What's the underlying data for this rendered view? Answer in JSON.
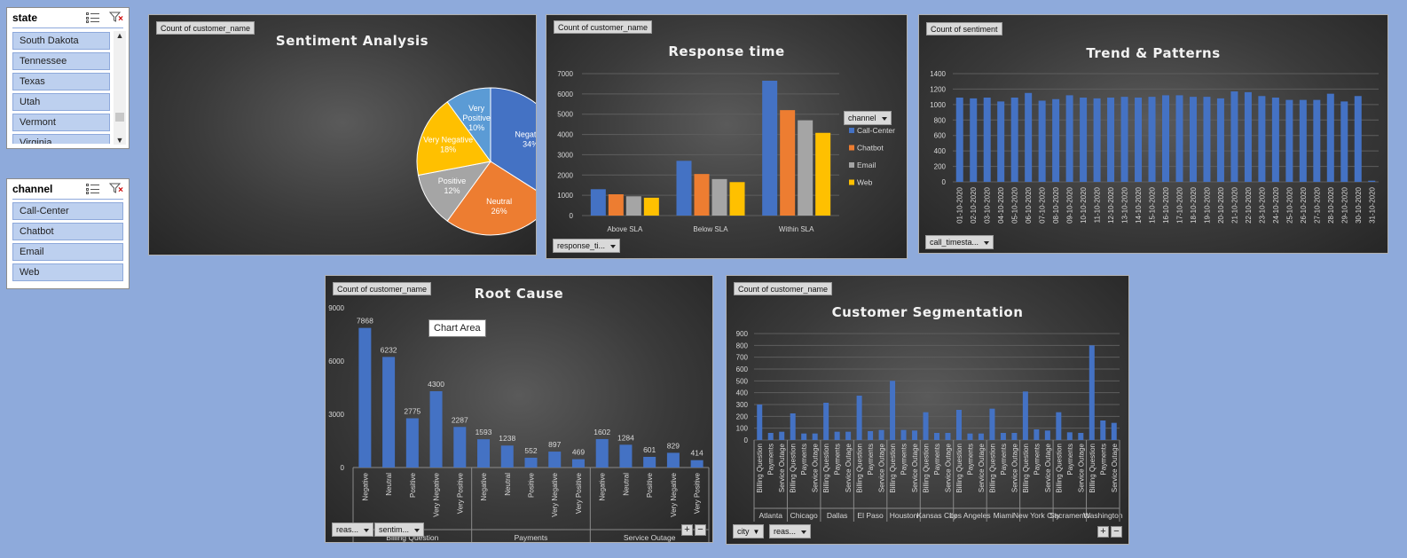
{
  "slicers": {
    "state": {
      "title": "state",
      "items": [
        "South Dakota",
        "Tennessee",
        "Texas",
        "Utah",
        "Vermont",
        "Virginia"
      ]
    },
    "channel": {
      "title": "channel",
      "items": [
        "Call-Center",
        "Chatbot",
        "Email",
        "Web"
      ]
    }
  },
  "panels": {
    "sentiment": {
      "field_button": "Count of customer_name",
      "title": "Sentiment Analysis"
    },
    "response": {
      "field_button": "Count of customer_name",
      "title": "Response time",
      "axis_button": "response_ti...",
      "legend_button": "channel"
    },
    "trend": {
      "field_button": "Count of sentiment",
      "title": "Trend & Patterns",
      "axis_button": "call_timesta..."
    },
    "root": {
      "field_button": "Count of customer_name",
      "title": "Root Cause",
      "axis_button_1": "reas...",
      "axis_button_2": "sentim...",
      "tooltip": "Chart Area",
      "plus": "+",
      "minus": "−"
    },
    "segment": {
      "field_button": "Count of customer_name",
      "title": "Customer Segmentation",
      "axis_button_1": "city",
      "axis_button_2": "reas...",
      "plus": "+",
      "minus": "−"
    }
  },
  "colors": {
    "blue": "#4472c4",
    "orange": "#ed7d31",
    "gray": "#a5a5a5",
    "gold": "#ffc000",
    "lightblue": "#5b9bd5"
  },
  "chart_data": [
    {
      "id": "sentiment",
      "type": "pie",
      "title": "Sentiment Analysis",
      "slices": [
        {
          "label": "Negative",
          "pct_label": "34%",
          "value": 34,
          "color": "#4472c4"
        },
        {
          "label": "Neutral",
          "pct_label": "26%",
          "value": 26,
          "color": "#ed7d31"
        },
        {
          "label": "Positive",
          "pct_label": "12%",
          "value": 12,
          "color": "#a5a5a5"
        },
        {
          "label": "Very Negative",
          "pct_label": "18%",
          "value": 18,
          "color": "#ffc000"
        },
        {
          "label": "Very Positive",
          "pct_label": "10%",
          "value": 10,
          "color": "#5b9bd5"
        }
      ]
    },
    {
      "id": "response",
      "type": "bar",
      "title": "Response time",
      "categories": [
        "Above SLA",
        "Below SLA",
        "Within SLA"
      ],
      "series": [
        {
          "name": "Call-Center",
          "color": "#4472c4",
          "values": [
            1300,
            2700,
            6650
          ]
        },
        {
          "name": "Chatbot",
          "color": "#ed7d31",
          "values": [
            1050,
            2050,
            5200
          ]
        },
        {
          "name": "Email",
          "color": "#a5a5a5",
          "values": [
            950,
            1800,
            4700
          ]
        },
        {
          "name": "Web",
          "color": "#ffc000",
          "values": [
            880,
            1650,
            4080
          ]
        }
      ],
      "yticks": [
        "0",
        "1000",
        "2000",
        "3000",
        "4000",
        "5000",
        "6000",
        "7000"
      ],
      "ylim": [
        0,
        7000
      ],
      "legend": "right"
    },
    {
      "id": "trend",
      "type": "bar",
      "title": "Trend & Patterns",
      "categories": [
        "01-10-2020",
        "02-10-2020",
        "03-10-2020",
        "04-10-2020",
        "05-10-2020",
        "06-10-2020",
        "07-10-2020",
        "08-10-2020",
        "09-10-2020",
        "10-10-2020",
        "11-10-2020",
        "12-10-2020",
        "13-10-2020",
        "14-10-2020",
        "15-10-2020",
        "16-10-2020",
        "17-10-2020",
        "18-10-2020",
        "19-10-2020",
        "20-10-2020",
        "21-10-2020",
        "22-10-2020",
        "23-10-2020",
        "24-10-2020",
        "25-10-2020",
        "26-10-2020",
        "27-10-2020",
        "28-10-2020",
        "29-10-2020",
        "30-10-2020",
        "31-10-2020"
      ],
      "values": [
        1090,
        1080,
        1090,
        1040,
        1090,
        1150,
        1050,
        1070,
        1120,
        1090,
        1080,
        1090,
        1100,
        1090,
        1100,
        1120,
        1120,
        1100,
        1100,
        1080,
        1170,
        1160,
        1110,
        1090,
        1060,
        1060,
        1060,
        1140,
        1040,
        1110,
        15
      ],
      "yticks": [
        "0",
        "200",
        "400",
        "600",
        "800",
        "1000",
        "1200",
        "1400"
      ],
      "ylim": [
        0,
        1400
      ]
    },
    {
      "id": "root",
      "type": "bar",
      "title": "Root Cause",
      "groups": [
        "Billing Question",
        "Payments",
        "Service Outage"
      ],
      "subcategories": [
        "Negative",
        "Neutral",
        "Positive",
        "Very Negative",
        "Very Positive"
      ],
      "values": [
        [
          7868,
          6232,
          2775,
          4300,
          2287
        ],
        [
          1593,
          1238,
          552,
          897,
          469
        ],
        [
          1602,
          1284,
          601,
          829,
          414
        ]
      ],
      "labels": [
        [
          "7868",
          "6232",
          "2775",
          "4300",
          "2287"
        ],
        [
          "1593",
          "1238",
          "552",
          "897",
          "469"
        ],
        [
          "1602",
          "1284",
          "601",
          "829",
          "414"
        ]
      ],
      "yticks": [
        "0",
        "3000",
        "6000",
        "9000"
      ],
      "ylim": [
        0,
        9000
      ]
    },
    {
      "id": "segment",
      "type": "bar",
      "title": "Customer Segmentation",
      "groups": [
        "Atlanta",
        "Chicago",
        "Dallas",
        "El Paso",
        "Houston",
        "Kansas City",
        "Los Angeles",
        "Miami",
        "New York City",
        "Sacramento",
        "Washington"
      ],
      "subcategories": [
        "Billing Question",
        "Payments",
        "Service Outage"
      ],
      "values": [
        [
          300,
          60,
          70
        ],
        [
          225,
          55,
          55
        ],
        [
          315,
          70,
          70
        ],
        [
          375,
          75,
          85
        ],
        [
          500,
          85,
          80
        ],
        [
          235,
          60,
          60
        ],
        [
          255,
          55,
          55
        ],
        [
          265,
          60,
          60
        ],
        [
          410,
          90,
          80
        ],
        [
          235,
          65,
          60
        ],
        [
          800,
          165,
          145
        ]
      ],
      "yticks": [
        "0",
        "100",
        "200",
        "300",
        "400",
        "500",
        "600",
        "700",
        "800",
        "900"
      ],
      "ylim": [
        0,
        900
      ]
    }
  ]
}
